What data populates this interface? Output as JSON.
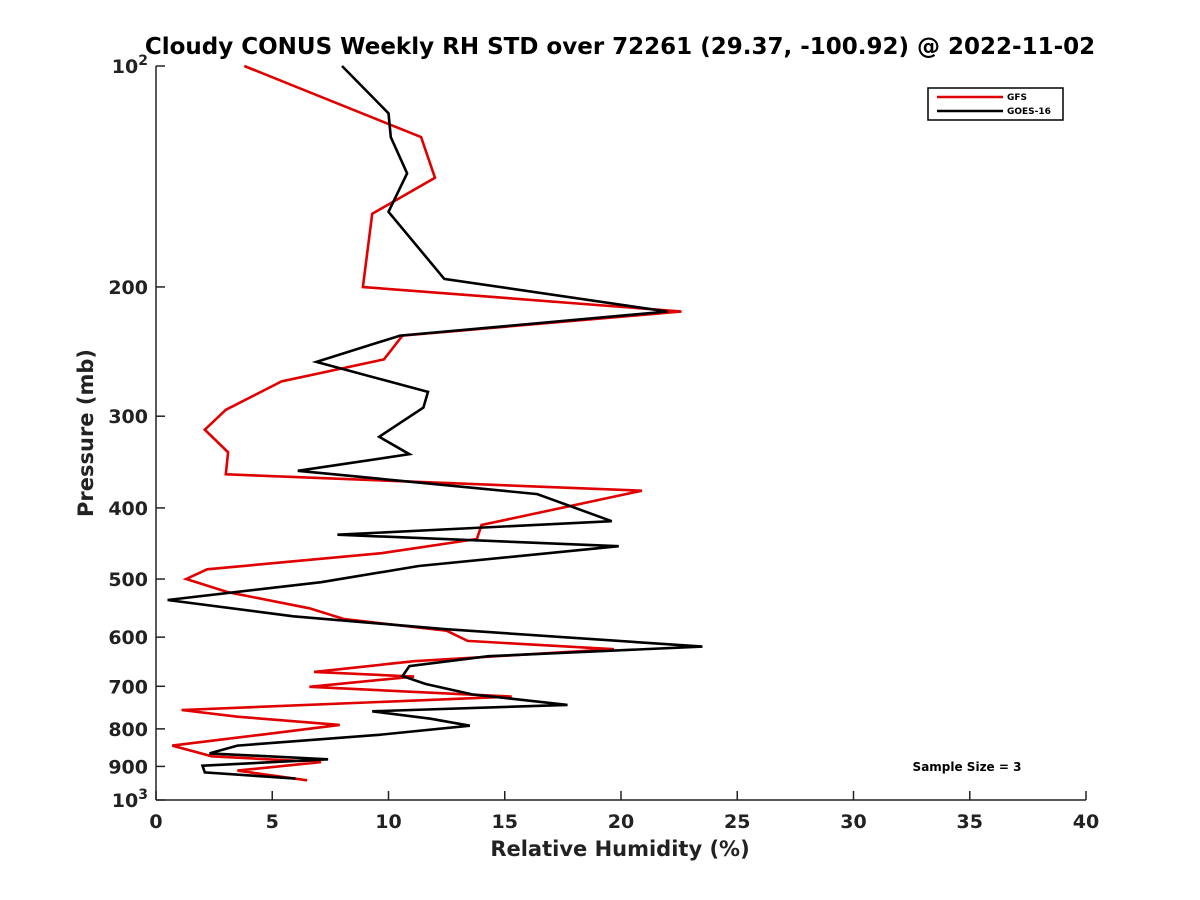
{
  "chart_data": {
    "type": "line",
    "title": "Cloudy CONUS Weekly RH STD over 72261 (29.37, -100.92) @ 2022-11-02",
    "xlabel": "Relative Humidity (%)",
    "ylabel": "Pressure (mb)",
    "xlim": [
      0,
      40
    ],
    "ylim": [
      100,
      1000
    ],
    "y_scale": "log",
    "y_reversed": true,
    "grid": false,
    "legend_position": "top-right",
    "x_ticks": [
      "0",
      "5",
      "10",
      "15",
      "20",
      "25",
      "30",
      "35",
      "40"
    ],
    "x_tick_values": [
      0,
      5,
      10,
      15,
      20,
      25,
      30,
      35,
      40
    ],
    "y_ticks": [
      {
        "value": 100,
        "base": "10",
        "exp": "2"
      },
      {
        "value": 200,
        "label": "200"
      },
      {
        "value": 300,
        "label": "300"
      },
      {
        "value": 400,
        "label": "400"
      },
      {
        "value": 500,
        "label": "500"
      },
      {
        "value": 600,
        "label": "600"
      },
      {
        "value": 700,
        "label": "700"
      },
      {
        "value": 800,
        "label": "800"
      },
      {
        "value": 900,
        "label": "900"
      },
      {
        "value": 1000,
        "base": "10",
        "exp": "3"
      }
    ],
    "annotation": "Sample Size = 3",
    "series": [
      {
        "name": "GFS",
        "color": "#e00000",
        "points": [
          [
            3.8,
            100
          ],
          [
            11.4,
            125
          ],
          [
            12.0,
            142
          ],
          [
            9.3,
            159
          ],
          [
            8.9,
            200
          ],
          [
            22.6,
            216
          ],
          [
            10.6,
            233
          ],
          [
            9.8,
            251
          ],
          [
            5.4,
            269
          ],
          [
            3.0,
            294
          ],
          [
            2.1,
            313
          ],
          [
            3.1,
            336
          ],
          [
            3.0,
            360
          ],
          [
            20.9,
            379
          ],
          [
            14.0,
            422
          ],
          [
            13.8,
            441
          ],
          [
            9.7,
            461
          ],
          [
            2.2,
            485
          ],
          [
            1.3,
            500
          ],
          [
            3.1,
            521
          ],
          [
            6.6,
            548
          ],
          [
            8.1,
            567
          ],
          [
            12.5,
            588
          ],
          [
            13.4,
            607
          ],
          [
            19.7,
            623
          ],
          [
            11.1,
            647
          ],
          [
            6.8,
            669
          ],
          [
            11.1,
            679
          ],
          [
            6.6,
            701
          ],
          [
            15.3,
            723
          ],
          [
            1.1,
            754
          ],
          [
            3.5,
            770
          ],
          [
            7.9,
            790
          ],
          [
            4.5,
            815
          ],
          [
            0.7,
            843
          ],
          [
            2.4,
            872
          ],
          [
            7.1,
            888
          ],
          [
            3.5,
            912
          ],
          [
            6.5,
            940
          ]
        ]
      },
      {
        "name": "GOES-16",
        "color": "#000000",
        "points": [
          [
            8.0,
            100
          ],
          [
            10.0,
            116
          ],
          [
            10.1,
            125
          ],
          [
            10.8,
            140
          ],
          [
            10.0,
            158
          ],
          [
            12.4,
            195
          ],
          [
            22.0,
            216
          ],
          [
            10.5,
            233
          ],
          [
            6.9,
            253
          ],
          [
            11.7,
            278
          ],
          [
            11.5,
            292
          ],
          [
            9.6,
            320
          ],
          [
            10.9,
            338
          ],
          [
            6.1,
            356
          ],
          [
            16.4,
            383
          ],
          [
            19.6,
            417
          ],
          [
            7.8,
            435
          ],
          [
            19.9,
            451
          ],
          [
            11.3,
            480
          ],
          [
            7.1,
            505
          ],
          [
            0.5,
            534
          ],
          [
            5.9,
            562
          ],
          [
            12.4,
            585
          ],
          [
            23.5,
            618
          ],
          [
            14.3,
            637
          ],
          [
            10.9,
            657
          ],
          [
            10.6,
            678
          ],
          [
            11.6,
            695
          ],
          [
            13.6,
            718
          ],
          [
            17.7,
            742
          ],
          [
            9.3,
            757
          ],
          [
            11.8,
            775
          ],
          [
            13.5,
            792
          ],
          [
            9.6,
            815
          ],
          [
            3.5,
            843
          ],
          [
            2.3,
            864
          ],
          [
            7.4,
            880
          ],
          [
            2.0,
            898
          ],
          [
            2.1,
            917
          ],
          [
            6.0,
            935
          ]
        ]
      }
    ]
  }
}
